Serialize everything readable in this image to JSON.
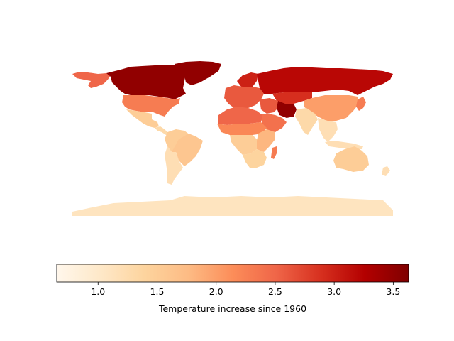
{
  "chart_data": {
    "type": "choropleth",
    "colormap": "OrRd",
    "colorbar": {
      "label": "Temperature increase since 1960",
      "range": [
        0.65,
        3.63
      ],
      "ticks": [
        1.0,
        1.5,
        2.0,
        2.5,
        3.0,
        3.5
      ],
      "tick_labels": [
        "1.0",
        "1.5",
        "2.0",
        "2.5",
        "3.0",
        "3.5"
      ],
      "colors": [
        "#fff7ec",
        "#fee8c8",
        "#fdd49e",
        "#fdbb84",
        "#fc8d59",
        "#ef6548",
        "#d7301f",
        "#b30000",
        "#7f0000"
      ]
    },
    "regions": [
      {
        "name": "Canada",
        "value": 3.5
      },
      {
        "name": "Alaska",
        "value": 2.5
      },
      {
        "name": "Greenland",
        "value": 3.5
      },
      {
        "name": "United States",
        "value": 2.3
      },
      {
        "name": "Mexico",
        "value": 1.5
      },
      {
        "name": "Central America",
        "value": 1.3
      },
      {
        "name": "South America North",
        "value": 1.5
      },
      {
        "name": "Brazil",
        "value": 1.6
      },
      {
        "name": "South America South",
        "value": 1.2
      },
      {
        "name": "Europe",
        "value": 2.6
      },
      {
        "name": "Scandinavia",
        "value": 3.0
      },
      {
        "name": "Russia",
        "value": 3.2
      },
      {
        "name": "Central Asia",
        "value": 2.9
      },
      {
        "name": "Iran",
        "value": 3.5
      },
      {
        "name": "Middle East",
        "value": 2.6
      },
      {
        "name": "Arabia",
        "value": 2.4
      },
      {
        "name": "China",
        "value": 2.0
      },
      {
        "name": "India",
        "value": 1.3
      },
      {
        "name": "Southeast Asia",
        "value": 1.2
      },
      {
        "name": "Japan",
        "value": 2.3
      },
      {
        "name": "North Africa",
        "value": 2.5
      },
      {
        "name": "Sahel",
        "value": 2.2
      },
      {
        "name": "Central Africa",
        "value": 1.5
      },
      {
        "name": "East Africa",
        "value": 1.8
      },
      {
        "name": "Southern Africa",
        "value": 1.4
      },
      {
        "name": "Madagascar",
        "value": 2.3
      },
      {
        "name": "Australia",
        "value": 1.5
      },
      {
        "name": "Indonesia",
        "value": 1.2
      },
      {
        "name": "New Zealand",
        "value": 1.2
      },
      {
        "name": "Antarctica",
        "value": 1.1
      }
    ]
  }
}
